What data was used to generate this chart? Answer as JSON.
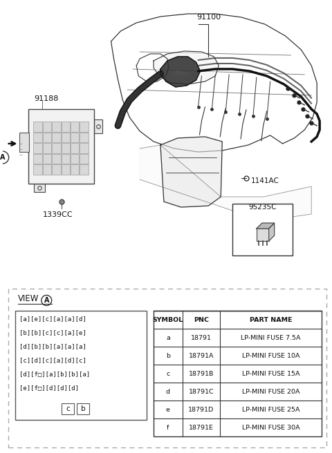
{
  "bg_color": "#ffffff",
  "fuse_grid": [
    "[a][e][c][a][a][d]",
    "[b][b][c][c][a][e]",
    "[d][b][b][a][a][a]",
    "[c][d][c][a][d][c]",
    "[d][f□][a][b][b][a]",
    "[e][f□][d][d][d]"
  ],
  "table_headers": [
    "SYMBOL",
    "PNC",
    "PART NAME"
  ],
  "table_rows": [
    [
      "a",
      "18791",
      "LP-MINI FUSE 7.5A"
    ],
    [
      "b",
      "18791A",
      "LP-MINI FUSE 10A"
    ],
    [
      "c",
      "18791B",
      "LP-MINI FUSE 15A"
    ],
    [
      "d",
      "18791C",
      "LP-MINI FUSE 20A"
    ],
    [
      "e",
      "18791D",
      "LP-MINI FUSE 25A"
    ],
    [
      "f",
      "18791E",
      "LP-MINI FUSE 30A"
    ]
  ],
  "label_91100": "91100",
  "label_91188": "91188",
  "label_1339CC": "1339CC",
  "label_1141AC": "1141AC",
  "label_95235C": "95235C",
  "view_a": "VIEW",
  "lc": "#333333",
  "dash_color": "#888888"
}
